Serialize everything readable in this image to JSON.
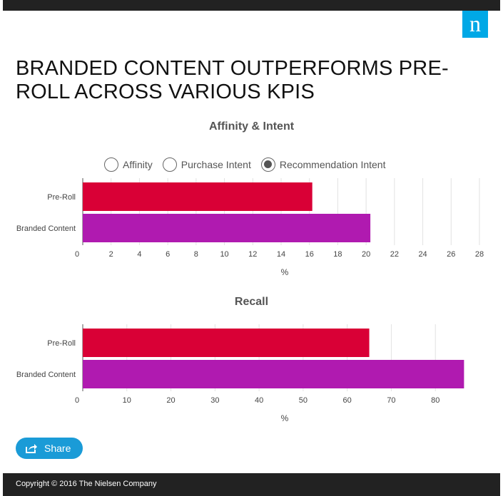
{
  "header": {
    "logo_letter": "n"
  },
  "page_title": "BRANDED CONTENT OUTPERFORMS PRE-ROLL ACROSS VARIOUS KPIS",
  "toggles": [
    {
      "label": "Affinity",
      "selected": false
    },
    {
      "label": "Purchase Intent",
      "selected": false
    },
    {
      "label": "Recommendation Intent",
      "selected": true
    }
  ],
  "share": {
    "label": "Share"
  },
  "footer": {
    "copyright": "Copyright © 2016 The Nielsen Company"
  },
  "colors": {
    "pre_roll": "#d90036",
    "branded": "#b01ab0",
    "accent": "#1a9bd7",
    "logo": "#00a8e6"
  },
  "chart_data": [
    {
      "type": "bar",
      "orientation": "horizontal",
      "title": "Affinity & Intent",
      "categories": [
        "Pre-Roll",
        "Branded Content"
      ],
      "values": [
        16.2,
        20.3
      ],
      "xlabel": "%",
      "xlim": [
        0,
        28
      ],
      "ticks": [
        0,
        2,
        4,
        6,
        8,
        10,
        12,
        14,
        16,
        18,
        20,
        22,
        24,
        26,
        28
      ],
      "grid": true
    },
    {
      "type": "bar",
      "orientation": "horizontal",
      "title": "Recall",
      "categories": [
        "Pre-Roll",
        "Branded Content"
      ],
      "values": [
        65,
        86.5
      ],
      "xlabel": "%",
      "xlim": [
        0,
        90
      ],
      "ticks": [
        0,
        10,
        20,
        30,
        40,
        50,
        60,
        70,
        80
      ],
      "grid": true
    }
  ]
}
